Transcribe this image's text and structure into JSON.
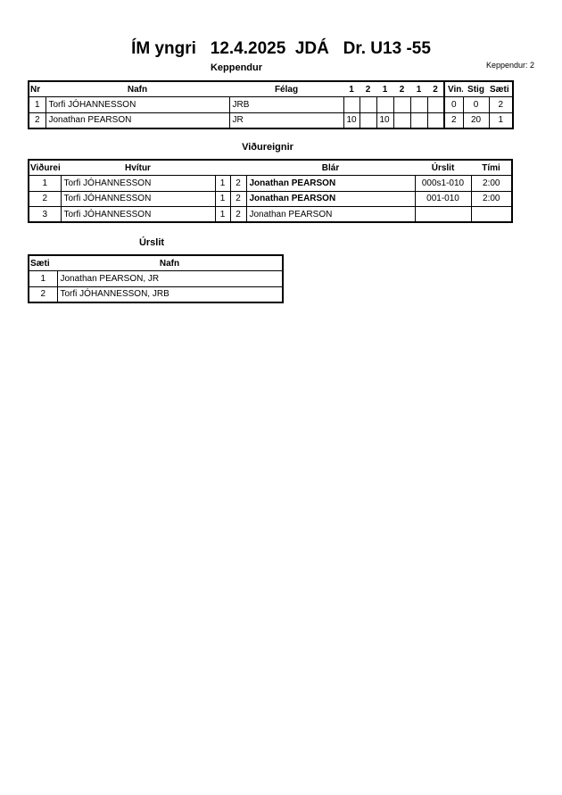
{
  "title": "ÍM yngri   12.4.2025  JDÁ   Dr. U13 -55",
  "keppendur": {
    "heading": "Keppendur",
    "count_label": "Keppendur: 2",
    "headers": [
      "Nr",
      "Nafn",
      "Félag",
      "1",
      "2",
      "1",
      "2",
      "1",
      "2",
      "Vin.",
      "Stig",
      "Sæti"
    ],
    "rows": [
      [
        "1",
        "Torfi JÓHANNESSON",
        "JRB",
        "",
        "",
        "",
        "",
        "",
        "",
        "0",
        "0",
        "2"
      ],
      [
        "2",
        "Jonathan PEARSON",
        "JR",
        "10",
        "",
        "10",
        "",
        "",
        "",
        "2",
        "20",
        "1"
      ]
    ]
  },
  "vidureignir": {
    "heading": "Viðureignir",
    "headers": [
      "Viðureign",
      "Hvítur",
      "",
      "",
      "Blár",
      "Úrslit",
      "Tími"
    ],
    "rows": [
      {
        "nr": "1",
        "white": "Torfi JÓHANNESSON",
        "a": "1",
        "b": "2",
        "blue": "Jonathan PEARSON",
        "result": "000s1-010",
        "time": "2:00",
        "blue_winner": true
      },
      {
        "nr": "2",
        "white": "Torfi JÓHANNESSON",
        "a": "1",
        "b": "2",
        "blue": "Jonathan PEARSON",
        "result": "001-010",
        "time": "2:00",
        "blue_winner": true
      },
      {
        "nr": "3",
        "white": "Torfi JÓHANNESSON",
        "a": "1",
        "b": "2",
        "blue": "Jonathan PEARSON",
        "result": "",
        "time": "",
        "blue_winner": false
      }
    ]
  },
  "urslit": {
    "heading": "Úrslit",
    "headers": [
      "Sæti",
      "Nafn"
    ],
    "rows": [
      [
        "1",
        "Jonathan PEARSON, JR"
      ],
      [
        "2",
        "Torfi JÓHANNESSON, JRB"
      ]
    ]
  }
}
